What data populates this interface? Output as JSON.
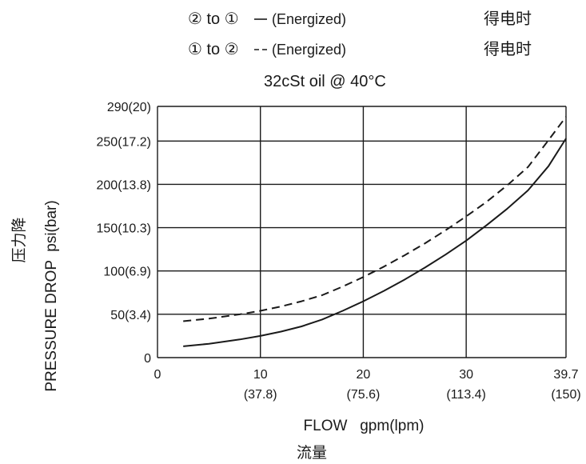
{
  "chart_data": {
    "type": "line",
    "legend": {
      "entries": [
        {
          "symbol_text": "② to ①",
          "line_style": "solid",
          "label": "(Energized)",
          "note_cn": "得电时"
        },
        {
          "symbol_text": "① to ②",
          "line_style": "dashed",
          "label": "(Energized)",
          "note_cn": "得电时"
        }
      ],
      "condition": "32cSt oil @ 40°C"
    },
    "ylabel": "PRESSURE DROP  psi(bar)",
    "ylabel_cn": "压力降",
    "xlabel": "FLOW   gpm(lpm)",
    "xlabel_cn": "流量",
    "xlim": [
      0,
      39.7
    ],
    "ylim": [
      0,
      290
    ],
    "x_ticks": [
      {
        "value": 0,
        "label": "0",
        "sub": ""
      },
      {
        "value": 10,
        "label": "10",
        "sub": "(37.8)"
      },
      {
        "value": 20,
        "label": "20",
        "sub": "(75.6)"
      },
      {
        "value": 30,
        "label": "30",
        "sub": "(113.4)"
      },
      {
        "value": 39.7,
        "label": "39.7",
        "sub": "(150)"
      }
    ],
    "y_ticks": [
      {
        "value": 0,
        "label": "0"
      },
      {
        "value": 50,
        "label": "50(3.4)"
      },
      {
        "value": 100,
        "label": "100(6.9)"
      },
      {
        "value": 150,
        "label": "150(10.3)"
      },
      {
        "value": 200,
        "label": "200(13.8)"
      },
      {
        "value": 250,
        "label": "250(17.2)"
      },
      {
        "value": 290,
        "label": "290(20)"
      }
    ],
    "grid": true,
    "series": [
      {
        "style": "solid",
        "x": [
          2.5,
          5,
          8,
          10,
          12,
          14,
          16,
          18,
          20,
          22,
          24,
          26,
          28,
          30,
          32,
          34,
          36,
          38,
          39.7
        ],
        "y": [
          13,
          16,
          21,
          25,
          30,
          36,
          44,
          54,
          65,
          77,
          90,
          104,
          119,
          135,
          153,
          172,
          193,
          221,
          253
        ]
      },
      {
        "style": "dashed",
        "x": [
          2.5,
          5,
          8,
          10,
          12,
          14,
          16,
          18,
          20,
          22,
          24,
          26,
          28,
          30,
          32,
          34,
          36,
          38,
          39.7
        ],
        "y": [
          42,
          45,
          50,
          54,
          59,
          65,
          72,
          82,
          93,
          105,
          118,
          132,
          147,
          163,
          180,
          199,
          220,
          251,
          278
        ]
      }
    ]
  }
}
